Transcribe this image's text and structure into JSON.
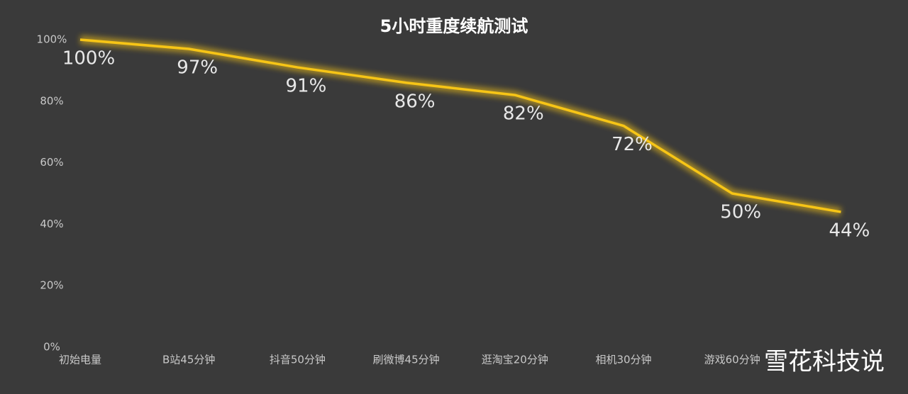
{
  "chart_data": {
    "type": "line",
    "title": "5小时重度续航测试",
    "categories": [
      "初始电量",
      "B站45分钟",
      "抖音50分钟",
      "刷微博45分钟",
      "逛淘宝20分钟",
      "相机30分钟",
      "游戏60分钟",
      null
    ],
    "values": [
      100,
      97,
      91,
      86,
      82,
      72,
      50,
      44
    ],
    "value_labels": [
      "100%",
      "97%",
      "91%",
      "86%",
      "82%",
      "72%",
      "50%",
      "44%"
    ],
    "color": "#f7c516",
    "ylim": [
      0,
      100
    ],
    "yticks": [
      {
        "value": 0,
        "label": "0%"
      },
      {
        "value": 20,
        "label": "20%"
      },
      {
        "value": 40,
        "label": "40%"
      },
      {
        "value": 60,
        "label": "60%"
      },
      {
        "value": 80,
        "label": "80%"
      },
      {
        "value": 100,
        "label": "100%"
      }
    ],
    "grid": false
  },
  "watermark": "雪花科技说"
}
